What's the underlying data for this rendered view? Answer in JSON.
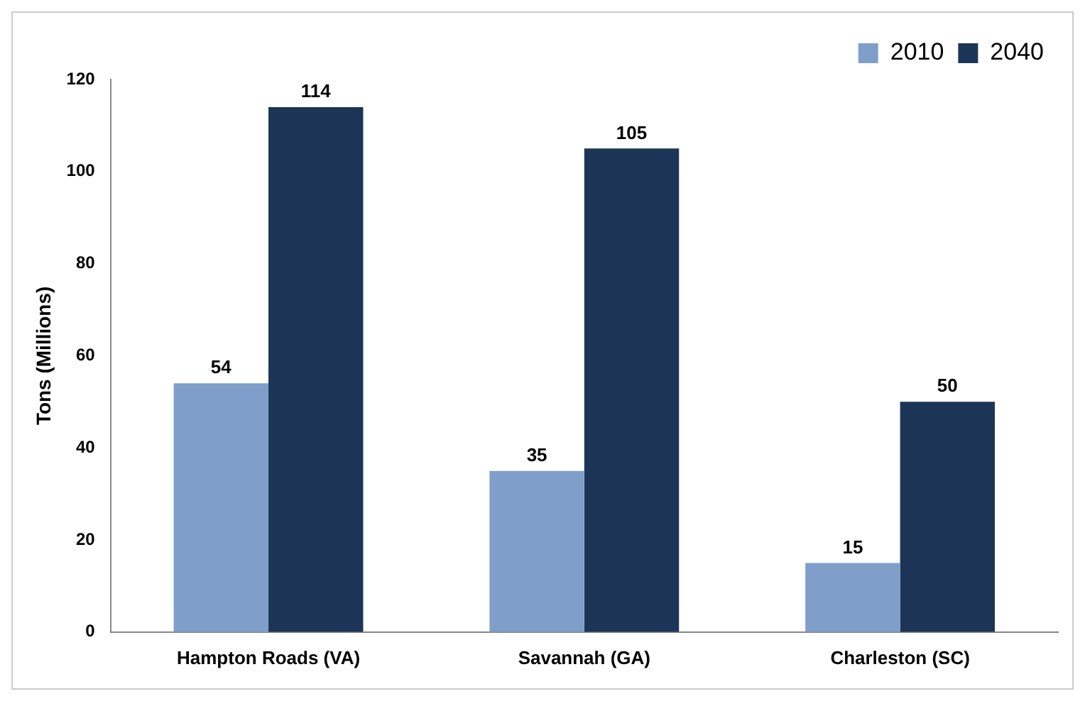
{
  "chart_data": {
    "type": "bar",
    "ylabel": "Tons (Millions)",
    "categories": [
      "Hampton Roads (VA)",
      "Savannah (GA)",
      "Charleston (SC)"
    ],
    "series": [
      {
        "name": "2010",
        "color": "#7f9fca",
        "values": [
          54,
          35,
          15
        ]
      },
      {
        "name": "2040",
        "color": "#1c3557",
        "values": [
          114,
          105,
          50
        ]
      }
    ],
    "ylim": [
      0,
      120
    ],
    "yticks": [
      0,
      20,
      40,
      60,
      80,
      100,
      120
    ],
    "grid": false,
    "legend": "top right",
    "data_labels": true
  }
}
